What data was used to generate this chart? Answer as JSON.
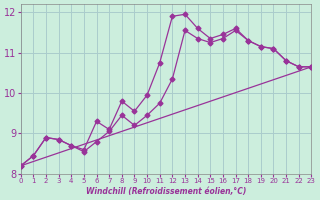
{
  "xlabel": "Windchill (Refroidissement éolien,°C)",
  "bg_color": "#cceedd",
  "grid_color": "#aacccc",
  "line_color": "#993399",
  "xlim": [
    0,
    23
  ],
  "ylim": [
    8,
    12.2
  ],
  "xticks": [
    0,
    1,
    2,
    3,
    4,
    5,
    6,
    7,
    8,
    9,
    10,
    11,
    12,
    13,
    14,
    15,
    16,
    17,
    18,
    19,
    20,
    21,
    22,
    23
  ],
  "yticks": [
    8,
    9,
    10,
    11,
    12
  ],
  "line1_x": [
    0,
    1,
    2,
    3,
    4,
    5,
    6,
    7,
    8,
    9,
    10,
    11,
    12,
    13,
    14,
    15,
    16,
    17,
    18,
    19,
    20,
    21,
    22,
    23
  ],
  "line1_y": [
    8.2,
    8.45,
    8.9,
    8.85,
    8.7,
    8.6,
    9.3,
    9.1,
    9.8,
    9.55,
    9.95,
    10.75,
    11.9,
    11.95,
    11.6,
    11.35,
    11.45,
    11.6,
    11.3,
    11.15,
    11.1,
    10.8,
    10.65,
    10.65
  ],
  "line2_x": [
    0,
    1,
    2,
    3,
    4,
    5,
    6,
    7,
    8,
    9,
    10,
    11,
    12,
    13,
    14,
    15,
    16,
    17,
    18,
    19,
    20,
    21,
    22,
    23
  ],
  "line2_y": [
    8.2,
    8.45,
    8.9,
    8.85,
    8.7,
    8.55,
    8.8,
    9.05,
    9.45,
    9.2,
    9.45,
    9.75,
    10.35,
    11.55,
    11.35,
    11.25,
    11.35,
    11.55,
    11.3,
    11.15,
    11.1,
    10.8,
    10.65,
    10.65
  ],
  "line3_x": [
    0,
    23
  ],
  "line3_y": [
    8.2,
    10.65
  ],
  "marker": "D",
  "markersize": 2.5
}
